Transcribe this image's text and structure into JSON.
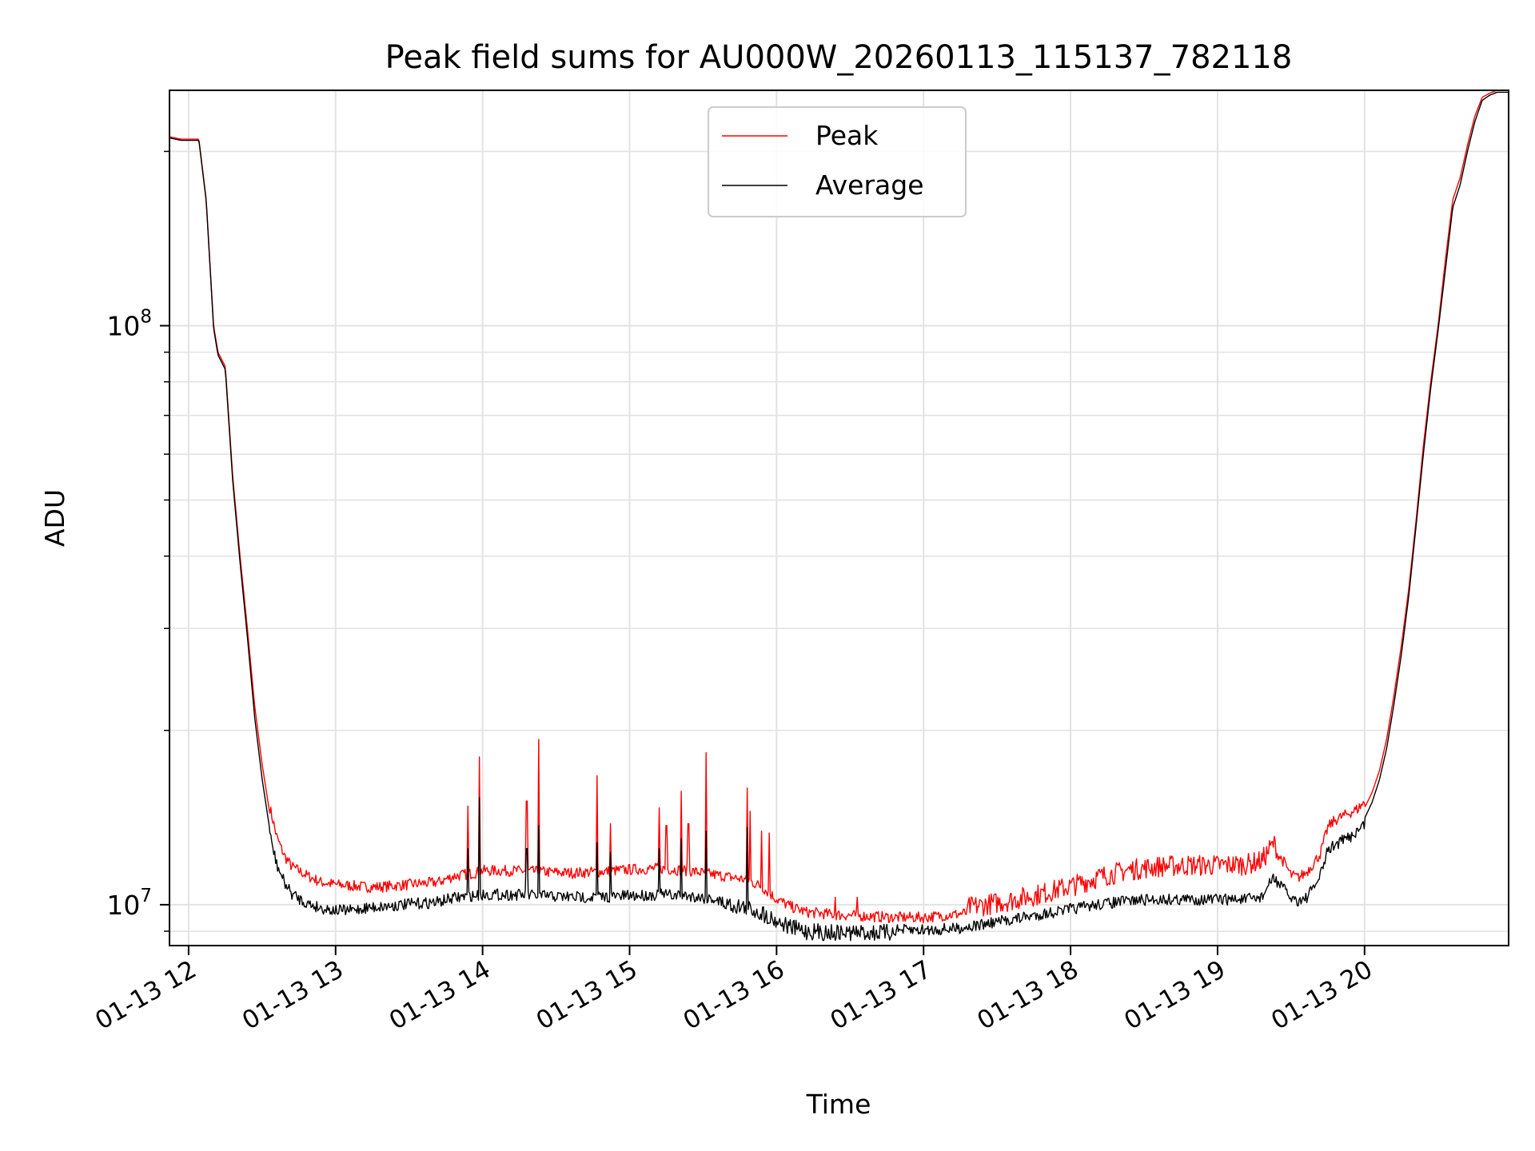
{
  "chart_data": {
    "type": "line",
    "title": "Peak field sums for AU000W_20260113_115137_782118",
    "xlabel": "Time",
    "ylabel": "ADU",
    "yscale": "log",
    "ylim": [
      8500000,
      255000000
    ],
    "xlim_hours": [
      11.87,
      20.98
    ],
    "x_ticks": [
      {
        "hour": 12,
        "label": "01-13 12"
      },
      {
        "hour": 13,
        "label": "01-13 13"
      },
      {
        "hour": 14,
        "label": "01-13 14"
      },
      {
        "hour": 15,
        "label": "01-13 15"
      },
      {
        "hour": 16,
        "label": "01-13 16"
      },
      {
        "hour": 17,
        "label": "01-13 17"
      },
      {
        "hour": 18,
        "label": "01-13 18"
      },
      {
        "hour": 19,
        "label": "01-13 19"
      },
      {
        "hour": 20,
        "label": "01-13 20"
      }
    ],
    "y_ticks": [
      {
        "value": 10000000,
        "base": "10",
        "exp": "7"
      },
      {
        "value": 100000000,
        "base": "10",
        "exp": "8"
      }
    ],
    "grid": true,
    "legend_position": "upper-center",
    "series": [
      {
        "name": "Peak",
        "color": "#ff0000",
        "x": [
          11.87,
          11.95,
          12.07,
          12.12,
          12.17,
          12.2,
          12.25,
          12.3,
          12.35,
          12.4,
          12.45,
          12.5,
          12.55,
          12.6,
          12.65,
          12.7,
          12.8,
          12.9,
          13.0,
          13.1,
          13.2,
          13.3,
          13.4,
          13.5,
          13.6,
          13.7,
          13.8,
          13.85,
          13.9,
          13.95,
          14.0,
          14.2,
          14.4,
          14.6,
          14.8,
          15.0,
          15.2,
          15.4,
          15.6,
          15.8,
          15.9,
          16.0,
          16.1,
          16.2,
          16.4,
          16.6,
          16.8,
          17.0,
          17.2,
          17.4,
          17.6,
          17.8,
          18.0,
          18.2,
          18.4,
          18.6,
          18.8,
          19.0,
          19.2,
          19.3,
          19.38,
          19.45,
          19.5,
          19.55,
          19.6,
          19.65,
          19.7,
          19.75,
          19.8,
          19.85,
          19.9,
          19.95,
          20.0,
          20.05,
          20.1,
          20.15,
          20.2,
          20.25,
          20.3,
          20.35,
          20.4,
          20.45,
          20.5,
          20.55,
          20.6,
          20.65,
          20.7,
          20.75,
          20.8,
          20.85,
          20.9,
          20.98
        ],
        "values": [
          212000000,
          210000000,
          210000000,
          165000000,
          100000000,
          90000000,
          85000000,
          55000000,
          40000000,
          30000000,
          22000000,
          17500000,
          14500000,
          12800000,
          11900000,
          11400000,
          11000000,
          10700000,
          10600000,
          10550000,
          10500000,
          10500000,
          10550000,
          10600000,
          10650000,
          10700000,
          10950000,
          11000000,
          11050000,
          11100000,
          11200000,
          11200000,
          11150000,
          11100000,
          11150000,
          11250000,
          11300000,
          11200000,
          11000000,
          10800000,
          10500000,
          10000000,
          9700000,
          9500000,
          9400000,
          9350000,
          9300000,
          9300000,
          9400000,
          9550000,
          9750000,
          10000000,
          10300000,
          10700000,
          11000000,
          11150000,
          11200000,
          11200000,
          11250000,
          11400000,
          12200000,
          11600000,
          11000000,
          10900000,
          11100000,
          11500000,
          12000000,
          13300000,
          13700000,
          13900000,
          14100000,
          14300000,
          14700000,
          15600000,
          17000000,
          19300000,
          23000000,
          28000000,
          35000000,
          46000000,
          62000000,
          80000000,
          100000000,
          130000000,
          165000000,
          180000000,
          205000000,
          230000000,
          248000000,
          252000000,
          255000000,
          255000000
        ],
        "spikes": [
          {
            "x": 13.9,
            "value": 14800000
          },
          {
            "x": 13.98,
            "value": 18000000
          },
          {
            "x": 14.3,
            "value": 15100000
          },
          {
            "x": 14.38,
            "value": 19300000
          },
          {
            "x": 14.78,
            "value": 16700000
          },
          {
            "x": 14.87,
            "value": 13800000
          },
          {
            "x": 15.2,
            "value": 14700000
          },
          {
            "x": 15.25,
            "value": 13700000
          },
          {
            "x": 15.35,
            "value": 15700000
          },
          {
            "x": 15.4,
            "value": 13800000
          },
          {
            "x": 15.52,
            "value": 18300000
          },
          {
            "x": 15.8,
            "value": 15900000
          },
          {
            "x": 15.82,
            "value": 14500000
          },
          {
            "x": 15.9,
            "value": 13400000
          },
          {
            "x": 15.95,
            "value": 13300000
          },
          {
            "x": 16.4,
            "value": 10300000
          },
          {
            "x": 16.55,
            "value": 10300000
          },
          {
            "x": 17.38,
            "value": 10100000
          },
          {
            "x": 17.48,
            "value": 10400000
          }
        ]
      },
      {
        "name": "Average",
        "color": "#000000",
        "x": [
          11.87,
          11.95,
          12.07,
          12.12,
          12.17,
          12.2,
          12.25,
          12.3,
          12.35,
          12.4,
          12.45,
          12.5,
          12.55,
          12.6,
          12.65,
          12.7,
          12.8,
          12.9,
          13.0,
          13.1,
          13.2,
          13.3,
          13.4,
          13.5,
          13.6,
          13.7,
          13.8,
          13.85,
          13.9,
          13.95,
          14.0,
          14.2,
          14.4,
          14.6,
          14.8,
          15.0,
          15.2,
          15.4,
          15.6,
          15.8,
          15.9,
          16.0,
          16.1,
          16.2,
          16.4,
          16.6,
          16.8,
          17.0,
          17.2,
          17.4,
          17.6,
          17.8,
          18.0,
          18.2,
          18.4,
          18.6,
          18.8,
          19.0,
          19.2,
          19.3,
          19.38,
          19.45,
          19.5,
          19.55,
          19.6,
          19.65,
          19.7,
          19.75,
          19.8,
          19.85,
          19.9,
          19.95,
          20.0,
          20.05,
          20.1,
          20.15,
          20.2,
          20.25,
          20.3,
          20.35,
          20.4,
          20.45,
          20.5,
          20.55,
          20.6,
          20.65,
          20.7,
          20.75,
          20.8,
          20.85,
          20.9,
          20.98
        ],
        "values": [
          211000000,
          209000000,
          209000000,
          164000000,
          99000000,
          89000000,
          84000000,
          54000000,
          39000000,
          29000000,
          21000000,
          16500000,
          13600000,
          12000000,
          11200000,
          10700000,
          10300000,
          10100000,
          10000000,
          10000000,
          10100000,
          10150000,
          10200000,
          10250000,
          10300000,
          10350000,
          10500000,
          10550000,
          10600000,
          10600000,
          10650000,
          10650000,
          10600000,
          10550000,
          10550000,
          10600000,
          10650000,
          10600000,
          10450000,
          10200000,
          10000000,
          9700000,
          9450000,
          9300000,
          9250000,
          9250000,
          9250000,
          9250000,
          9300000,
          9450000,
          9650000,
          9850000,
          10050000,
          10250000,
          10400000,
          10450000,
          10450000,
          10450000,
          10450000,
          10550000,
          11400000,
          10900000,
          10500000,
          10400000,
          10500000,
          10900000,
          11500000,
          12700000,
          13000000,
          13200000,
          13400000,
          13700000,
          14100000,
          15000000,
          16400000,
          18600000,
          22200000,
          27000000,
          34000000,
          45000000,
          60000000,
          78000000,
          98000000,
          125000000,
          160000000,
          175000000,
          200000000,
          225000000,
          245000000,
          250000000,
          253000000,
          253000000
        ],
        "spikes": [
          {
            "x": 13.9,
            "value": 12500000
          },
          {
            "x": 13.98,
            "value": 15300000
          },
          {
            "x": 14.3,
            "value": 12500000
          },
          {
            "x": 14.38,
            "value": 13700000
          },
          {
            "x": 14.78,
            "value": 12800000
          },
          {
            "x": 14.87,
            "value": 12300000
          },
          {
            "x": 15.2,
            "value": 12500000
          },
          {
            "x": 15.35,
            "value": 13000000
          },
          {
            "x": 15.52,
            "value": 13400000
          },
          {
            "x": 15.8,
            "value": 13600000
          }
        ]
      }
    ]
  }
}
